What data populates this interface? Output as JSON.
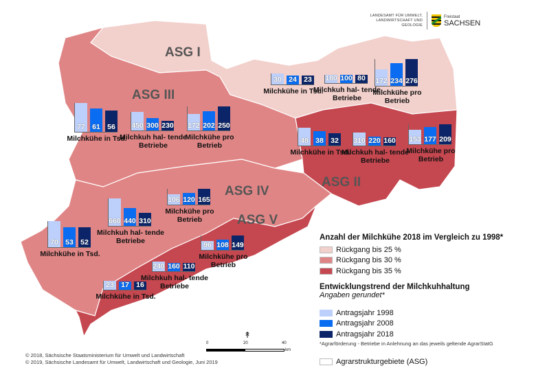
{
  "header": {
    "agency": "LANDESAMT FÜR UMWELT, LANDWIRTSCHAFT UND GEOLOGIE",
    "state_small": "Freistaat",
    "state": "SACHSEN"
  },
  "regions": [
    {
      "id": "asg-i",
      "label": "ASG I",
      "class": "Rückgang bis 25 %",
      "color": "#f2d0cc"
    },
    {
      "id": "asg-ii",
      "label": "ASG II",
      "class": "Rückgang bis 35 %",
      "color": "#c5474f"
    },
    {
      "id": "asg-iii",
      "label": "ASG III",
      "class": "Rückgang bis 30 %",
      "color": "#e08585"
    },
    {
      "id": "asg-iv",
      "label": "ASG IV",
      "class": "Rückgang bis 30 %",
      "color": "#e08585"
    },
    {
      "id": "asg-v",
      "label": "ASG V",
      "class": "Rückgang bis 35 %",
      "color": "#c5474f"
    }
  ],
  "indicators": {
    "cows": "Milchkühe in Tsd.",
    "farms": "Milchkuh hal- tende Betriebe",
    "per_farm": "Milchkühe pro Betrieb"
  },
  "years": [
    "1998",
    "2008",
    "2018"
  ],
  "bar_colors": [
    "#bdd0fb",
    "#0a6cf0",
    "#0c2568"
  ],
  "chart_data": {
    "type": "bar",
    "series_years": [
      "1998",
      "2008",
      "2018"
    ],
    "regions": {
      "ASG I": {
        "cows": [
          30,
          24,
          23
        ],
        "farms": [
          180,
          100,
          80
        ],
        "per_farm": [
          172,
          234,
          276
        ]
      },
      "ASG II": {
        "cows": [
          48,
          38,
          32
        ],
        "farms": [
          310,
          220,
          160
        ],
        "per_farm": [
          153,
          177,
          209
        ]
      },
      "ASG III": {
        "cows": [
          77,
          61,
          56
        ],
        "farms": [
          450,
          300,
          230
        ],
        "per_farm": [
          172,
          202,
          250
        ]
      },
      "ASG IV": {
        "cows": [
          70,
          53,
          52
        ],
        "farms": [
          660,
          440,
          310
        ],
        "per_farm": [
          106,
          120,
          165
        ]
      },
      "ASG V": {
        "cows": [
          23,
          17,
          16
        ],
        "farms": [
          240,
          160,
          110
        ],
        "per_farm": [
          96,
          108,
          149
        ]
      }
    }
  },
  "legend": {
    "title1": "Anzahl der Milchkühe 2018 im Vergleich zu 1998*",
    "classes": [
      {
        "label": "Rückgang bis 25 %",
        "color": "#f2d0cc"
      },
      {
        "label": "Rückgang bis 30 %",
        "color": "#e08585"
      },
      {
        "label": "Rückgang bis 35 %",
        "color": "#c5474f"
      }
    ],
    "title2": "Entwicklungstrend der Milchkuhhaltung",
    "subtitle2": "Angaben gerundet*",
    "years": [
      {
        "label": "Antragsjahr 1998",
        "color": "#bdd0fb"
      },
      {
        "label": "Antragsjahr 2008",
        "color": "#0a6cf0"
      },
      {
        "label": "Antragsjahr 2018",
        "color": "#0c2568"
      }
    ],
    "note": "*Agrarförderung - Betriebe in Anlehnung an das jeweils geltende AgrarStatG",
    "boundary": "Agrarstrukturgebiete (ASG)"
  },
  "scale": {
    "t0": "0",
    "t1": "20",
    "t2": "40",
    "unit": "km"
  },
  "footer": {
    "line1": "© 2018, Sächsische Staatsministerium für Umwelt und Landwirtschaft",
    "line2": "© 2019, Sächsische Landesamt für Umwelt, Landwirtschaft und Geologie, Juni 2019"
  }
}
